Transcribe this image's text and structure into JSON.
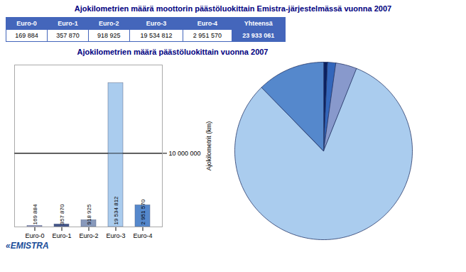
{
  "chart_data": [
    {
      "type": "table",
      "title": "Ajokilometrien määrä moottorin päästöluokittain Emistra-järjestelmässä vuonna 2007",
      "categories": [
        "Euro-0",
        "Euro-1",
        "Euro-2",
        "Euro-3",
        "Euro-4",
        "Yhteensä"
      ],
      "values": [
        169884,
        357870,
        918925,
        19534812,
        2951570,
        23933061
      ],
      "value_labels": [
        "169 884",
        "357 870",
        "918 925",
        "19 534 812",
        "2 951 570",
        "23 933 061"
      ],
      "color": "#4466bb",
      "annotations": [
        "«EMISTRA"
      ]
    },
    {
      "type": "bar",
      "title": "Ajokilometrien määrä päästöluokittain vuonna 2007",
      "categories": [
        "Euro-0",
        "Euro-1",
        "Euro-2",
        "Euro-3",
        "Euro-4"
      ],
      "values": [
        169884,
        357870,
        918925,
        19534812,
        2951570
      ],
      "colors": [
        "#aaaacc",
        "#445588",
        "#8899bb",
        "#aaccee",
        "#5588cc"
      ],
      "ylabel": "Ajokilometrit (km)",
      "ylim": [
        0,
        22000000
      ],
      "yticks": [
        {
          "value": 10000000,
          "label": "10 000 000"
        }
      ],
      "grid": true,
      "data_labels": true,
      "value_labels": [
        "169 884",
        "357 870",
        "918 925",
        "19 534 812",
        "2 951 570"
      ]
    },
    {
      "type": "pie",
      "values": [
        169884,
        357870,
        918925,
        19534812,
        2951570
      ],
      "colors": [
        "#0a2060",
        "#3366bb",
        "#8899cc",
        "#aaccee",
        "#5588cc"
      ]
    }
  ]
}
